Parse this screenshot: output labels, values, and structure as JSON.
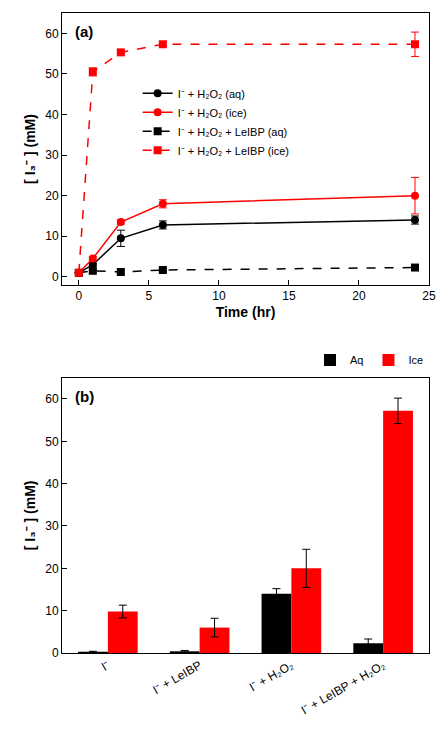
{
  "chart_data": [
    {
      "type": "line",
      "title": "(a)",
      "x_label": "Time (hr)",
      "y_label": "[ I₃⁻ ] (mM)",
      "x": [
        0,
        1,
        3,
        6,
        24
      ],
      "series": [
        {
          "name": "I⁻ + H₂O₂ (aq)",
          "color": "#000000",
          "marker": "circle",
          "line_style": "solid",
          "values": [
            1,
            3,
            9.5,
            12.8,
            14
          ],
          "errors": [
            0,
            0.3,
            2,
            1,
            1
          ]
        },
        {
          "name": "I⁻ + H₂O₂ (ice)",
          "color": "#ff0000",
          "marker": "circle",
          "line_style": "solid",
          "values": [
            1,
            4.5,
            13.5,
            18,
            20
          ],
          "errors": [
            0,
            0.5,
            0.5,
            1,
            4.5
          ]
        },
        {
          "name": "I⁻ + H₂O₂ + LeIBP (aq)",
          "color": "#000000",
          "marker": "square",
          "line_style": "dash",
          "values": [
            1,
            1.5,
            1.2,
            1.7,
            2.3
          ],
          "errors": [
            0,
            0.3,
            0.3,
            0.5,
            0.3
          ]
        },
        {
          "name": "I⁻ + H₂O₂ + LeIBP (ice)",
          "color": "#ff0000",
          "marker": "square",
          "line_style": "dash",
          "values": [
            1,
            50.5,
            55.3,
            57.3,
            57.3
          ],
          "errors": [
            0,
            1,
            0.5,
            0.5,
            3
          ]
        }
      ],
      "xlim": [
        -1.2,
        25
      ],
      "xticks": [
        0,
        5,
        10,
        15,
        20,
        25
      ],
      "ylim": [
        -2,
        65
      ],
      "yticks": [
        0,
        10,
        20,
        30,
        40,
        50,
        60
      ],
      "legend": "center",
      "grid": false
    },
    {
      "type": "bar",
      "title": "(b)",
      "y_label": "[ I₃⁻ ] (mM)",
      "categories": [
        "I⁻",
        "I⁻ + LeIBP",
        "I⁻ + H₂O₂",
        "I⁻ + LeIBP + H₂O₂"
      ],
      "series": [
        {
          "name": "Aq",
          "color": "#000000",
          "values": [
            0.3,
            0.4,
            14,
            2.3
          ],
          "errors": [
            0.1,
            0.2,
            1.2,
            1
          ]
        },
        {
          "name": "Ice",
          "color": "#ff0000",
          "values": [
            9.8,
            6,
            20,
            57.2
          ],
          "errors": [
            1.5,
            2.2,
            4.5,
            3
          ]
        }
      ],
      "ylim": [
        0,
        65
      ],
      "yticks": [
        0,
        10,
        20,
        30,
        40,
        50,
        60
      ],
      "legend": "upper right",
      "grid": false
    }
  ]
}
